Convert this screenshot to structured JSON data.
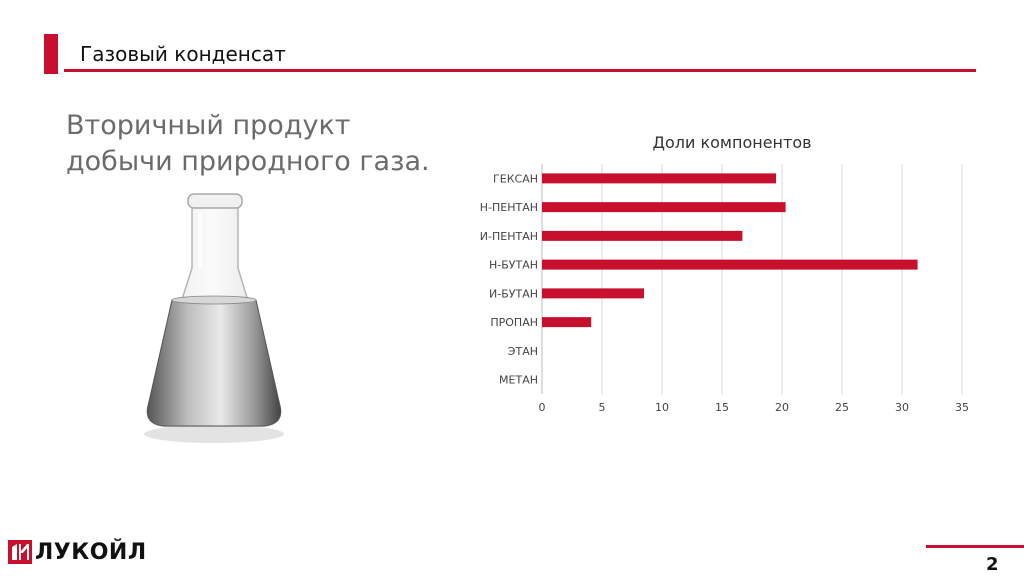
{
  "header": {
    "title": "Газовый конденсат"
  },
  "subtitle": "Вторичный продукт добычи природного газа.",
  "colors": {
    "accent": "#c8102e",
    "bar": "#c8102e",
    "grid": "#d9d9d9"
  },
  "illustration": {
    "icon": "erlenmeyer-flask-icon"
  },
  "chart_data": {
    "type": "bar",
    "orientation": "horizontal",
    "title": "Доли компонентов",
    "categories": [
      "ГЕКСАН",
      "Н-ПЕНТАН",
      "И-ПЕНТАН",
      "Н-БУТАН",
      "И-БУТАН",
      "ПРОПАН",
      "ЭТАН",
      "МЕТАН"
    ],
    "values": [
      19.5,
      20.3,
      16.7,
      31.3,
      8.5,
      4.1,
      0,
      0
    ],
    "xlim": [
      0,
      35
    ],
    "xticks": [
      "0",
      "5",
      "10",
      "15",
      "20",
      "25",
      "30",
      "35"
    ],
    "grid": true,
    "legend": "none"
  },
  "footer": {
    "brand": "ЛУКОЙЛ",
    "logo_icon": "lukoil-logo-icon",
    "page_number": "2"
  }
}
